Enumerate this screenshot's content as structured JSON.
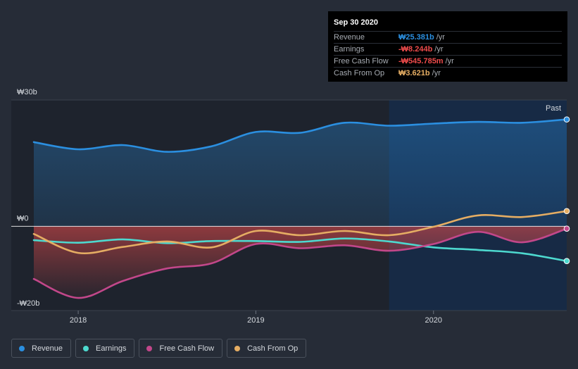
{
  "chart_data": {
    "type": "area",
    "x_ticks": [
      "2018",
      "2019",
      "2020"
    ],
    "y_ticks": [
      "₩30b",
      "₩0",
      "-₩20b"
    ],
    "ylim": [
      -20,
      30
    ],
    "xlim": [
      2017.75,
      2020.75
    ],
    "past_label": "Past",
    "past_start": 2019.75,
    "series": [
      {
        "name": "Revenue",
        "color": "#2b8fe0",
        "points": [
          [
            2017.75,
            20.0
          ],
          [
            2018.0,
            18.3
          ],
          [
            2018.25,
            19.3
          ],
          [
            2018.5,
            17.7
          ],
          [
            2018.75,
            19.0
          ],
          [
            2019.0,
            22.4
          ],
          [
            2019.25,
            22.2
          ],
          [
            2019.5,
            24.6
          ],
          [
            2019.75,
            23.9
          ],
          [
            2020.0,
            24.4
          ],
          [
            2020.25,
            24.8
          ],
          [
            2020.5,
            24.6
          ],
          [
            2020.75,
            25.381
          ]
        ]
      },
      {
        "name": "Earnings",
        "color": "#4dd9cf",
        "points": [
          [
            2017.75,
            -3.3
          ],
          [
            2018.0,
            -3.9
          ],
          [
            2018.25,
            -3.1
          ],
          [
            2018.5,
            -4.0
          ],
          [
            2018.75,
            -3.5
          ],
          [
            2019.0,
            -3.5
          ],
          [
            2019.25,
            -3.7
          ],
          [
            2019.5,
            -2.9
          ],
          [
            2019.75,
            -3.6
          ],
          [
            2020.0,
            -5.0
          ],
          [
            2020.25,
            -5.6
          ],
          [
            2020.5,
            -6.4
          ],
          [
            2020.75,
            -8.244
          ]
        ]
      },
      {
        "name": "Free Cash Flow",
        "color": "#c2478a",
        "points": [
          [
            2017.75,
            -12.5
          ],
          [
            2018.0,
            -17.0
          ],
          [
            2018.25,
            -13.0
          ],
          [
            2018.5,
            -10.0
          ],
          [
            2018.75,
            -8.8
          ],
          [
            2019.0,
            -4.2
          ],
          [
            2019.25,
            -5.2
          ],
          [
            2019.5,
            -4.5
          ],
          [
            2019.75,
            -5.8
          ],
          [
            2020.0,
            -4.2
          ],
          [
            2020.25,
            -1.3
          ],
          [
            2020.5,
            -3.8
          ],
          [
            2020.75,
            -0.546
          ]
        ]
      },
      {
        "name": "Cash From Op",
        "color": "#e5ad63",
        "points": [
          [
            2017.75,
            -1.8
          ],
          [
            2018.0,
            -6.3
          ],
          [
            2018.25,
            -4.9
          ],
          [
            2018.5,
            -3.6
          ],
          [
            2018.75,
            -5.0
          ],
          [
            2019.0,
            -1.1
          ],
          [
            2019.25,
            -2.1
          ],
          [
            2019.5,
            -1.1
          ],
          [
            2019.75,
            -2.1
          ],
          [
            2020.0,
            -0.1
          ],
          [
            2020.25,
            2.6
          ],
          [
            2020.5,
            2.2
          ],
          [
            2020.75,
            3.621
          ]
        ]
      }
    ]
  },
  "tooltip": {
    "date": "Sep 30 2020",
    "rows": [
      {
        "label": "Revenue",
        "value": "₩25.381b",
        "unit": "/yr",
        "color": "#2b8fe0"
      },
      {
        "label": "Earnings",
        "value": "-₩8.244b",
        "unit": "/yr",
        "color": "#ee4b4b"
      },
      {
        "label": "Free Cash Flow",
        "value": "-₩545.785m",
        "unit": "/yr",
        "color": "#ee4b4b"
      },
      {
        "label": "Cash From Op",
        "value": "₩3.621b",
        "unit": "/yr",
        "color": "#e5ad63"
      }
    ]
  },
  "legend": [
    {
      "label": "Revenue",
      "color": "#2b8fe0"
    },
    {
      "label": "Earnings",
      "color": "#4dd9cf"
    },
    {
      "label": "Free Cash Flow",
      "color": "#c2478a"
    },
    {
      "label": "Cash From Op",
      "color": "#e5ad63"
    }
  ]
}
